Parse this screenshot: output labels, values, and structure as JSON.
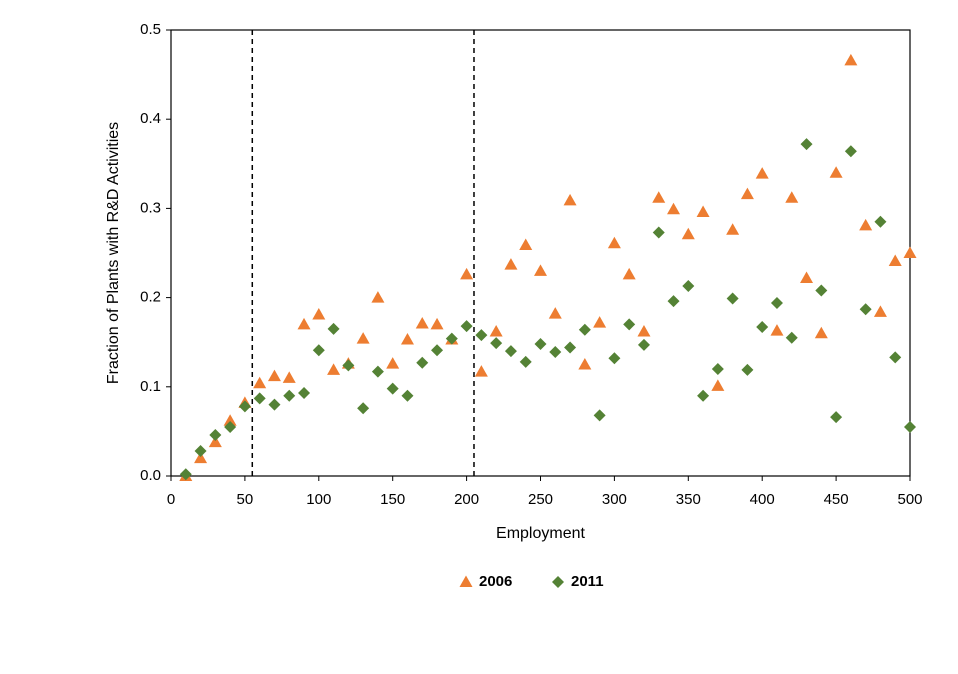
{
  "chart_data": {
    "type": "scatter",
    "x_label": "Employment",
    "y_label": "Fraction of Plants with R&D Activities",
    "x": [
      10,
      20,
      30,
      40,
      50,
      60,
      70,
      80,
      90,
      100,
      110,
      120,
      130,
      140,
      150,
      160,
      170,
      180,
      190,
      200,
      210,
      220,
      230,
      240,
      250,
      260,
      270,
      280,
      290,
      300,
      310,
      320,
      330,
      340,
      350,
      360,
      370,
      380,
      390,
      400,
      410,
      420,
      430,
      440,
      450,
      460,
      470,
      480,
      490,
      500
    ],
    "series": [
      {
        "name": "2006",
        "color": "#ED7D31",
        "marker": "triangle",
        "values": [
          0.0,
          0.02,
          0.038,
          0.062,
          0.082,
          0.104,
          0.112,
          0.11,
          0.17,
          0.181,
          0.119,
          0.126,
          0.154,
          0.2,
          0.126,
          0.153,
          0.171,
          0.17,
          0.153,
          0.226,
          0.117,
          0.162,
          0.237,
          0.259,
          0.23,
          0.182,
          0.309,
          0.125,
          0.172,
          0.261,
          0.226,
          0.162,
          0.312,
          0.299,
          0.271,
          0.296,
          0.101,
          0.276,
          0.316,
          0.339,
          0.163,
          0.312,
          0.222,
          0.16,
          0.34,
          0.466,
          0.281,
          0.184,
          0.241,
          0.25
        ]
      },
      {
        "name": "2011",
        "color": "#548235",
        "marker": "diamond",
        "values": [
          0.002,
          0.028,
          0.046,
          0.055,
          0.078,
          0.087,
          0.08,
          0.09,
          0.093,
          0.141,
          0.165,
          0.124,
          0.076,
          0.117,
          0.098,
          0.09,
          0.127,
          0.141,
          0.154,
          0.168,
          0.158,
          0.149,
          0.14,
          0.128,
          0.148,
          0.139,
          0.144,
          0.164,
          0.068,
          0.132,
          0.17,
          0.147,
          0.273,
          0.196,
          0.213,
          0.09,
          0.12,
          0.199,
          0.119,
          0.167,
          0.194,
          0.155,
          0.372,
          0.208,
          0.066,
          0.364,
          0.187,
          0.285,
          0.133,
          0.055
        ]
      }
    ],
    "xlim": [
      0,
      500
    ],
    "xticks": [
      0,
      50,
      100,
      150,
      200,
      250,
      300,
      350,
      400,
      450,
      500
    ],
    "ylim": [
      0,
      0.5
    ],
    "yticks": [
      {
        "value": 0,
        "label": "0.0"
      },
      0.1,
      0.2,
      0.3,
      0.4,
      0.5
    ],
    "vlines": [
      55,
      205
    ],
    "grid": false,
    "legend": "bottom"
  }
}
